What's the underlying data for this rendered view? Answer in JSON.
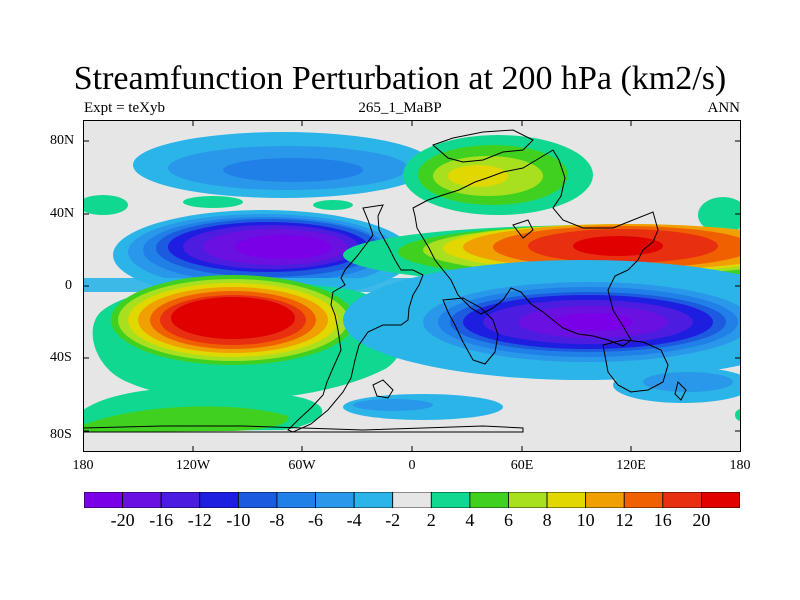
{
  "title": "Streamfunction Perturbation at 200 hPa (km2/s)",
  "left_string": "Expt = teXyb",
  "center_string": "265_1_MaBP",
  "right_string": "ANN",
  "y_axis_labels": [
    "80N",
    "40N",
    "0",
    "40S",
    "80S"
  ],
  "x_axis_labels": [
    "180",
    "120W",
    "60W",
    "0",
    "60E",
    "120E",
    "180"
  ],
  "colorbar": {
    "levels": [
      "-20",
      "-16",
      "-12",
      "-10",
      "-8",
      "-6",
      "-4",
      "-2",
      "2",
      "4",
      "6",
      "8",
      "10",
      "12",
      "16",
      "20"
    ],
    "colors": [
      "#7a00e8",
      "#6a10e0",
      "#4c1ce0",
      "#1e1ee0",
      "#1c5ae0",
      "#2080e8",
      "#2a98ea",
      "#2ab4e8",
      "#e6e6e6",
      "#10d890",
      "#40d020",
      "#a8e020",
      "#e0d800",
      "#f0a000",
      "#f06000",
      "#e83010",
      "#e00000"
    ]
  }
}
